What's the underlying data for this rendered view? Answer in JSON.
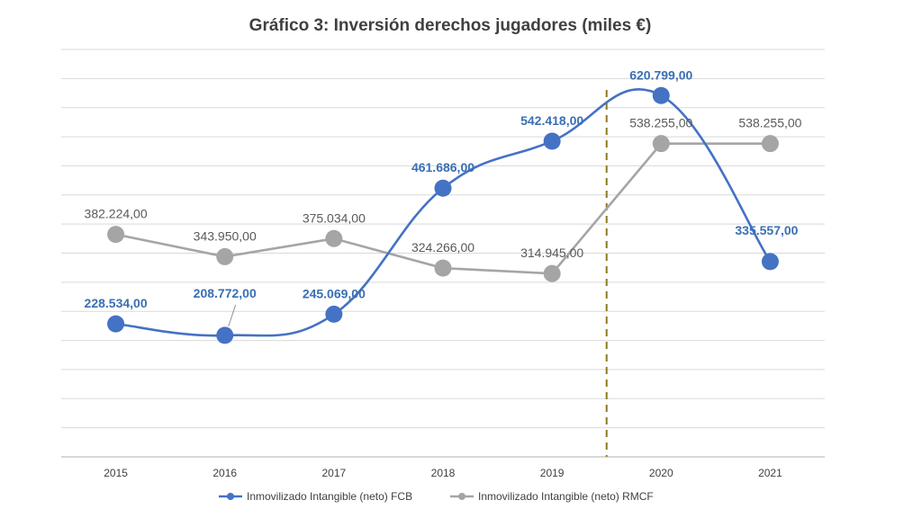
{
  "chart_data": {
    "type": "line",
    "title": "Gráfico 3: Inversión derechos jugadores (miles €)",
    "categories": [
      "2015",
      "2016",
      "2017",
      "2018",
      "2019",
      "2020",
      "2021"
    ],
    "ylim": [
      0,
      700000
    ],
    "grid": true,
    "legend": "bottom",
    "divider_after": "2019",
    "series": [
      {
        "name": "Inmovilizado Intangible (neto) FCB",
        "color": "#4472c4",
        "values": [
          228534,
          208772,
          245069,
          461686,
          542418,
          620799,
          335557
        ],
        "labels": [
          "228.534,00",
          "208.772,00",
          "245.069,00",
          "461.686,00",
          "542.418,00",
          "620.799,00",
          "335.557,00"
        ]
      },
      {
        "name": "Inmovilizado Intangible (neto) RMCF",
        "color": "#a5a5a5",
        "values": [
          382224,
          343950,
          375034,
          324266,
          314945,
          538255,
          538255
        ],
        "labels": [
          "382.224,00",
          "343.950,00",
          "375.034,00",
          "324.266,00",
          "314.945,00",
          "538.255,00",
          "538.255,00"
        ]
      }
    ]
  }
}
